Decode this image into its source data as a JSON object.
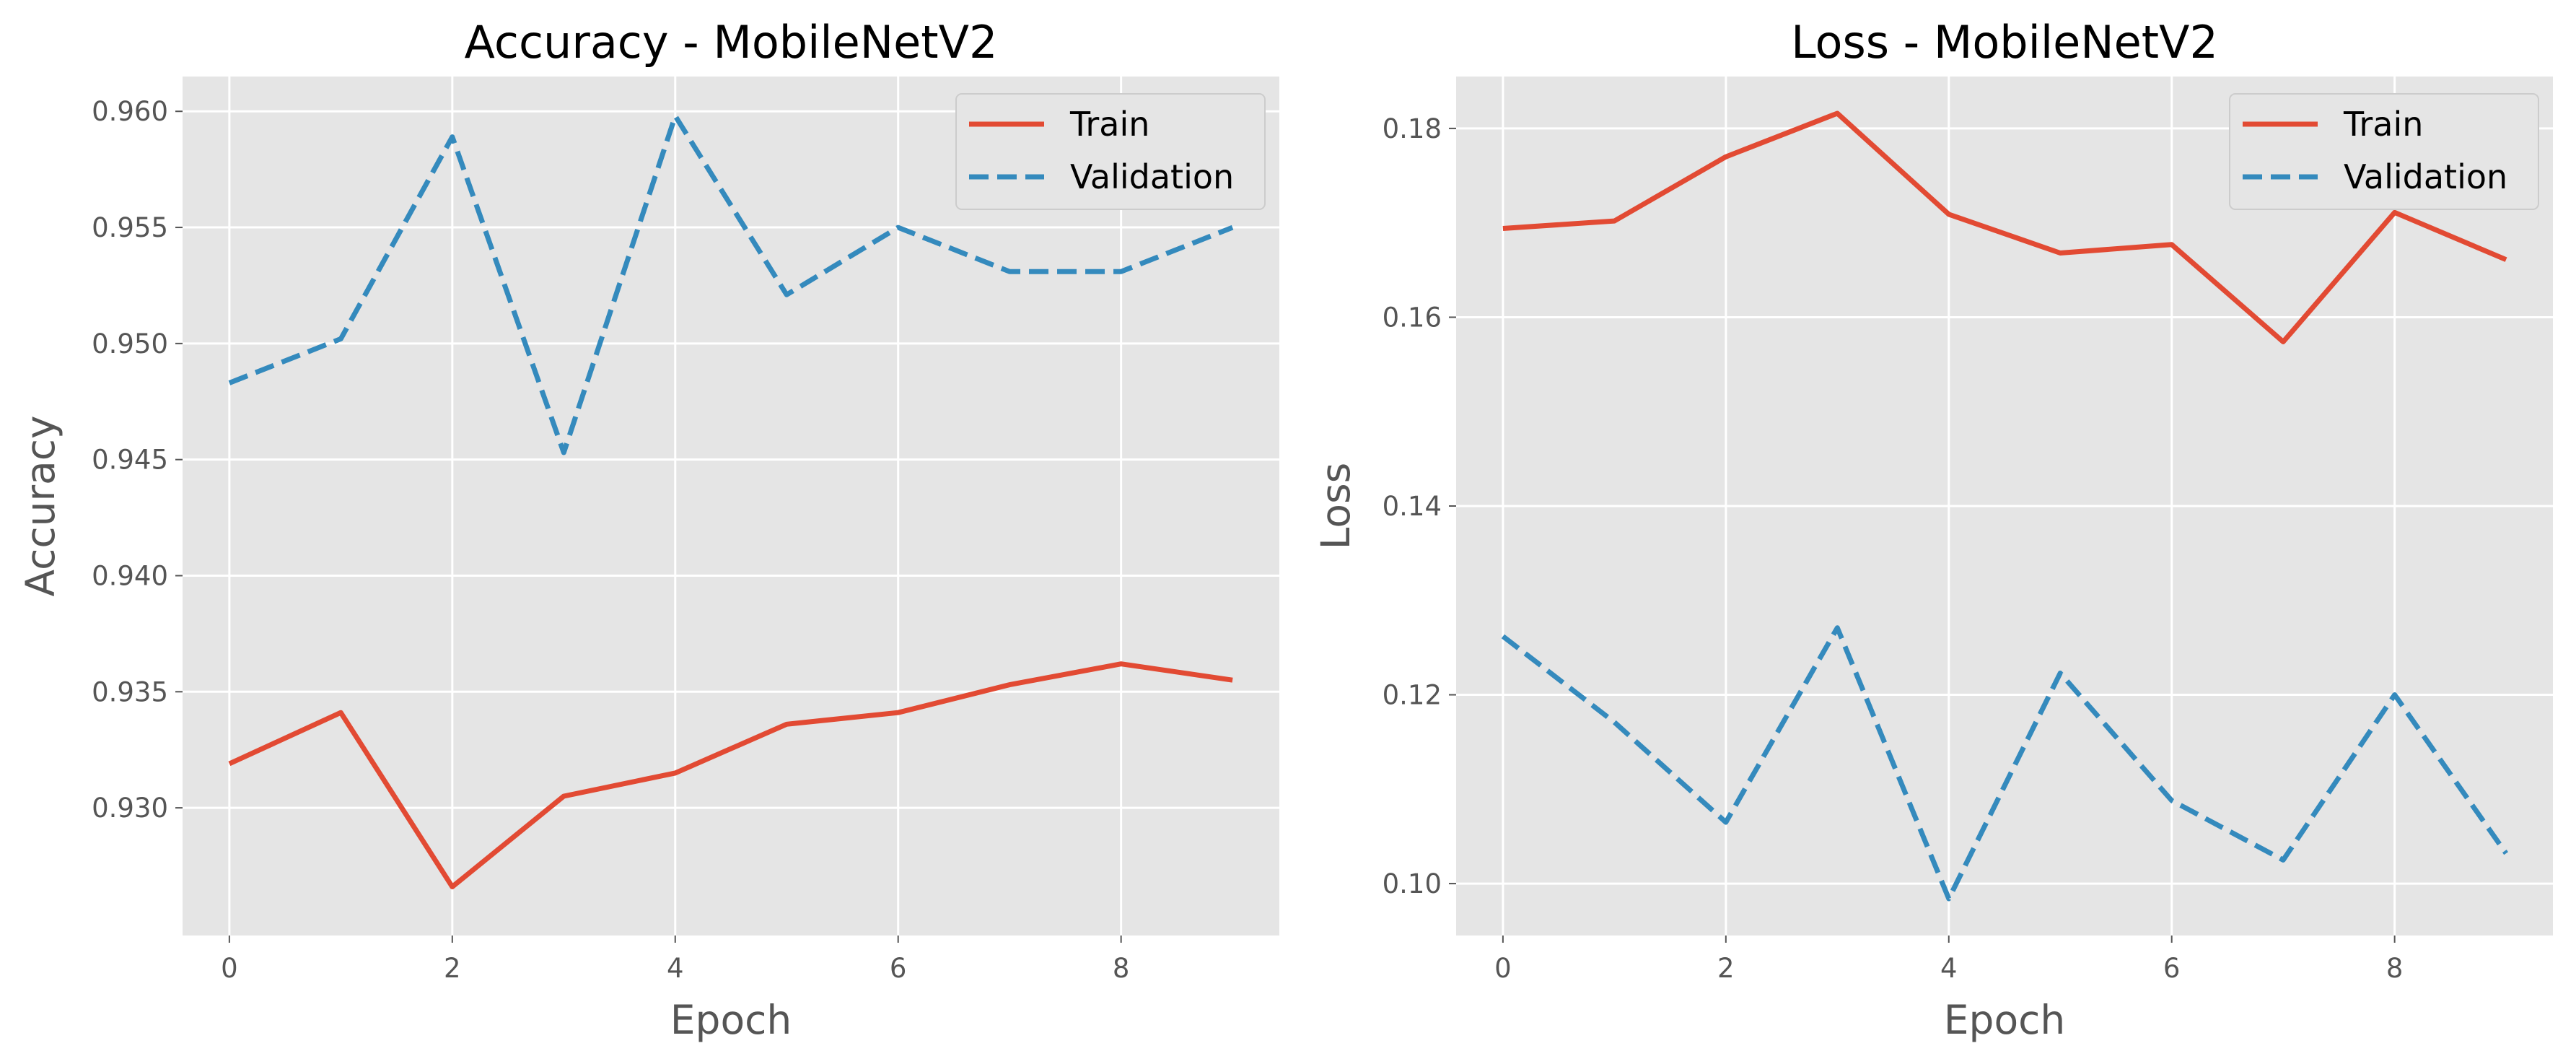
{
  "chart_data": [
    {
      "type": "line",
      "title": "Accuracy - MobileNetV2",
      "xlabel": "Epoch",
      "ylabel": "Accuracy",
      "xlim": [
        -0.42,
        9.42
      ],
      "ylim": [
        0.9245,
        0.9615
      ],
      "xticks": [
        0,
        2,
        4,
        6,
        8
      ],
      "yticks": [
        0.93,
        0.935,
        0.94,
        0.945,
        0.95,
        0.955,
        0.96
      ],
      "ytick_labels": [
        "0.930",
        "0.935",
        "0.940",
        "0.945",
        "0.950",
        "0.955",
        "0.960"
      ],
      "grid": true,
      "legend_position": "top-right",
      "x": [
        0,
        1,
        2,
        3,
        4,
        5,
        6,
        7,
        8,
        9
      ],
      "series": [
        {
          "name": "Train",
          "style": "solid",
          "color": "#E24A33",
          "values": [
            0.9319,
            0.9341,
            0.9266,
            0.9305,
            0.9315,
            0.9336,
            0.9341,
            0.9353,
            0.9362,
            0.9355
          ]
        },
        {
          "name": "Validation",
          "style": "dashed",
          "color": "#348ABD",
          "values": [
            0.9483,
            0.9502,
            0.9589,
            0.9453,
            0.9598,
            0.9521,
            0.955,
            0.9531,
            0.9531,
            0.955
          ]
        }
      ]
    },
    {
      "type": "line",
      "title": "Loss - MobileNetV2",
      "xlabel": "Epoch",
      "ylabel": "Loss",
      "xlim": [
        -0.42,
        9.42
      ],
      "ylim": [
        0.0945,
        0.1855
      ],
      "xticks": [
        0,
        2,
        4,
        6,
        8
      ],
      "yticks": [
        0.1,
        0.12,
        0.14,
        0.16,
        0.18
      ],
      "ytick_labels": [
        "0.10",
        "0.12",
        "0.14",
        "0.16",
        "0.18"
      ],
      "grid": true,
      "legend_position": "top-right",
      "x": [
        0,
        1,
        2,
        3,
        4,
        5,
        6,
        7,
        8,
        9
      ],
      "series": [
        {
          "name": "Train",
          "style": "solid",
          "color": "#E24A33",
          "values": [
            0.1694,
            0.1702,
            0.177,
            0.1816,
            0.1709,
            0.1668,
            0.1677,
            0.1574,
            0.1711,
            0.1661
          ]
        },
        {
          "name": "Validation",
          "style": "dashed",
          "color": "#348ABD",
          "values": [
            0.1262,
            0.1171,
            0.1065,
            0.1271,
            0.0984,
            0.1223,
            0.1088,
            0.1025,
            0.12,
            0.1032
          ]
        }
      ]
    }
  ],
  "colors": {
    "plot_background": "#E5E5E5",
    "grid": "#FFFFFF",
    "legend_background": "#E5E5E5",
    "legend_border": "#CCCCCC"
  }
}
